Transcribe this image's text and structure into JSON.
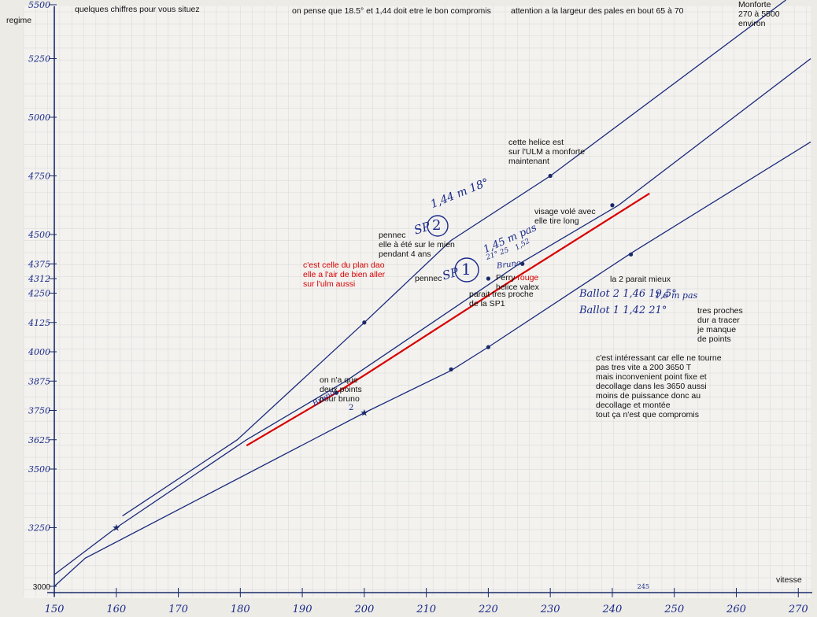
{
  "chart_data": {
    "type": "line",
    "xlabel": "vitesse",
    "ylabel": "regime",
    "xlim": [
      150,
      272
    ],
    "ylim": [
      3000,
      5500
    ],
    "x_ticks": [
      "150",
      "160",
      "170",
      "180",
      "190",
      "200",
      "210",
      "220",
      "230",
      "240",
      "250",
      "260",
      "270"
    ],
    "y_ticks": [
      "5500",
      "5250",
      "5000",
      "4750",
      "4500",
      "4375",
      "4312",
      "4250",
      "4125",
      "4000",
      "3875",
      "3750",
      "3625",
      "3500",
      "3250",
      "3000"
    ],
    "y_tick_values": [
      5500,
      5250,
      5000,
      4750,
      4500,
      4375,
      4312,
      4250,
      4125,
      4000,
      3875,
      3750,
      3625,
      3500,
      3250,
      3000
    ],
    "x_extra_mark": "245",
    "series": [
      {
        "name": "SP2 1,44 m 18°",
        "color": "#1a2a7a",
        "x": [
          161,
          179.5,
          200,
          214,
          230,
          268
        ],
        "y": [
          3300,
          3625,
          4125,
          4475,
          4750,
          5500
        ]
      },
      {
        "name": "SP1 1,45 m",
        "color": "#1a2a7a",
        "x": [
          150,
          160,
          181,
          197,
          211,
          225,
          241,
          272
        ],
        "y": [
          3050,
          3250,
          3625,
          3875,
          4125,
          4375,
          4625,
          5250
        ]
      },
      {
        "name": "rouge",
        "color": "#d80000",
        "x": [
          181,
          195.5,
          200,
          225,
          246
        ],
        "y": [
          3600,
          3825,
          3900,
          4325,
          4675
        ]
      },
      {
        "name": "Ballot",
        "color": "#1a2a7a",
        "x": [
          150,
          155,
          200,
          214,
          220,
          243,
          272
        ],
        "y": [
          3000,
          3120,
          3740,
          3920,
          4020,
          4420,
          4895
        ]
      }
    ],
    "points": [
      {
        "x": 160,
        "y": 3250,
        "marker": "star"
      },
      {
        "x": 200,
        "y": 4125,
        "marker": "dot"
      },
      {
        "x": 230,
        "y": 4750,
        "marker": "dot"
      },
      {
        "x": 240,
        "y": 4625,
        "marker": "dot"
      },
      {
        "x": 195.5,
        "y": 3825,
        "marker": "dot"
      },
      {
        "x": 220,
        "y": 4312,
        "marker": "dot"
      },
      {
        "x": 225.5,
        "y": 4375,
        "marker": "dot"
      },
      {
        "x": 200,
        "y": 3740,
        "marker": "star"
      },
      {
        "x": 214,
        "y": 3925,
        "marker": "dot"
      },
      {
        "x": 220,
        "y": 4020,
        "marker": "dot"
      },
      {
        "x": 243,
        "y": 4415,
        "marker": "dot"
      }
    ]
  },
  "annotations": {
    "top_left": "quelques chiffres pour vous situez",
    "top_center": "on pense que 18.5° et 1,44 doit etre le bon compromis",
    "top_right": "attention a la largeur des pales en bout 65 à 70",
    "monforte": "Monforte\n270 à 5500\n    environ",
    "helice_ulm": "cette helice est\nsur l'ULM a monforte\n      maintenant",
    "visage": "visage volé avec\nelle tire long",
    "pennec2": "pennec\nelle à été sur le mien\npendant 4 ans",
    "plan_dao": "c'est celle du plan dao\nelle a l'air de bien aller\nsur l'ulm aussi",
    "pennec1": "pennec",
    "ferry": "Ferry",
    "rouge": "rouge",
    "valex": "helice valex",
    "proche": "parait tres proche\nde la SP1",
    "la2": "la 2 parait mieux",
    "tres_proches": "tres proches\ndur a tracer\nje manque\nde points",
    "interessant": "c'est intéressant car elle ne tourne\npas tres vite a 200  3650 T\nmais inconvenient point fixe et\ndecollage dans les 3650 aussi\nmoins de puissance  donc au\ndecollage et montée\n tout ça n'est que compromis",
    "deux_points": "on n'a que\ndeux points\n           pour bruno"
  },
  "handwriting": {
    "sp2_spec": "1,44 m  18°",
    "sp2_label": "SP",
    "sp2_num": "2",
    "sp1_spec": "1,45 m  pas",
    "sp1_sub": "21° 25",
    "sp1_pitch": "1,52",
    "sp1_label": "SP",
    "sp1_num": "1",
    "bruno": "Bruno",
    "bruno2": "Bruno",
    "ballot2": "Ballot 2   1,46   19,5°",
    "ballot2_pas": "1,6 m pas",
    "ballot1": "Ballot 1   1,42   21°",
    "small2": "2"
  }
}
